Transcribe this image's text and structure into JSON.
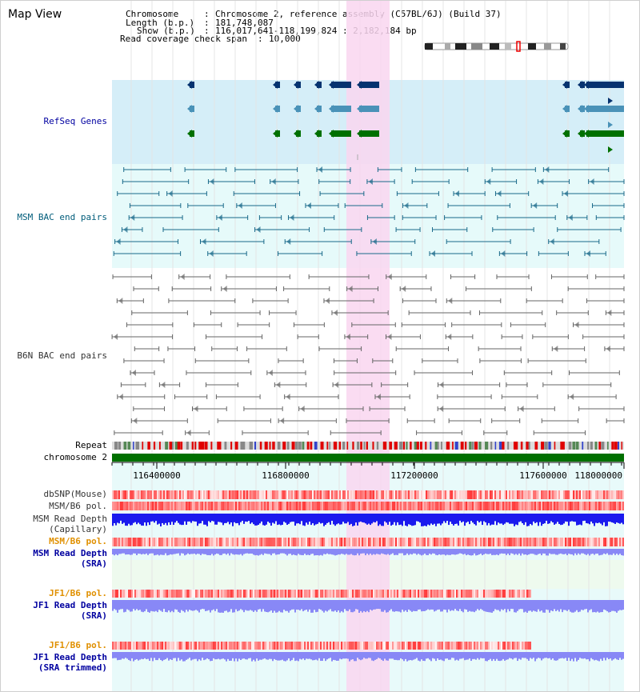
{
  "window": {
    "title": "Map View"
  },
  "info": {
    "chromosome_label": "Chromosome",
    "chromosome_value": "Chromosome 2, reference assembly (C57BL/6J) (Build 37)",
    "length_label": "Length (b.p.)",
    "length_value": "181,748,087",
    "show_label": "Show (b.p.)",
    "show_value": "116,017,641-118,199,824 : 2,182,184 bp",
    "coverage_label": "Read coverage check span",
    "coverage_value": "10,000"
  },
  "tracks": {
    "refseq": "RefSeq Genes",
    "msm_bac": "MSM BAC end pairs",
    "b6n_bac": "B6N BAC end pairs",
    "repeat": "Repeat",
    "chromosome": "chromosome 2",
    "dbsnp": "dbSNP(Mouse)",
    "msm_b6_pol": "MSM/B6 pol.",
    "msm_depth_cap_1": "MSM Read Depth",
    "msm_depth_cap_2": "(Capillary)",
    "msm_b6_pol2": "MSM/B6 pol.",
    "msm_depth_sra_1": "MSM Read Depth",
    "msm_depth_sra_2": "(SRA)",
    "jf1_b6_pol": "JF1/B6 pol.",
    "jf1_depth_sra_1": "JF1 Read Depth",
    "jf1_depth_sra_2": "(SRA)",
    "jf1_b6_pol2": "JF1/B6 pol.",
    "jf1_depth_trim_1": "JF1 Read Depth",
    "jf1_depth_trim_2": "(SRA trimmed)"
  },
  "axis": {
    "ticks": [
      "116400000",
      "116800000",
      "117200000",
      "117600000",
      "118000000"
    ]
  },
  "colors": {
    "refseq_bg": "#d5eef8",
    "msm_bg": "#e6fafa",
    "highlight": "#f9d6f0",
    "refseq_dark": "#063370",
    "refseq_mid": "#4a92b8",
    "refseq_green": "#007000",
    "msm_pair": "#1a6a8a",
    "b6n_pair": "#666666",
    "chromosome_bar": "#007000",
    "depth_blue": "#1a1aee",
    "depth_light": "#8888f6",
    "label_blue": "#0000a0",
    "label_orange": "#e09000",
    "label_teal": "#005c7a"
  }
}
